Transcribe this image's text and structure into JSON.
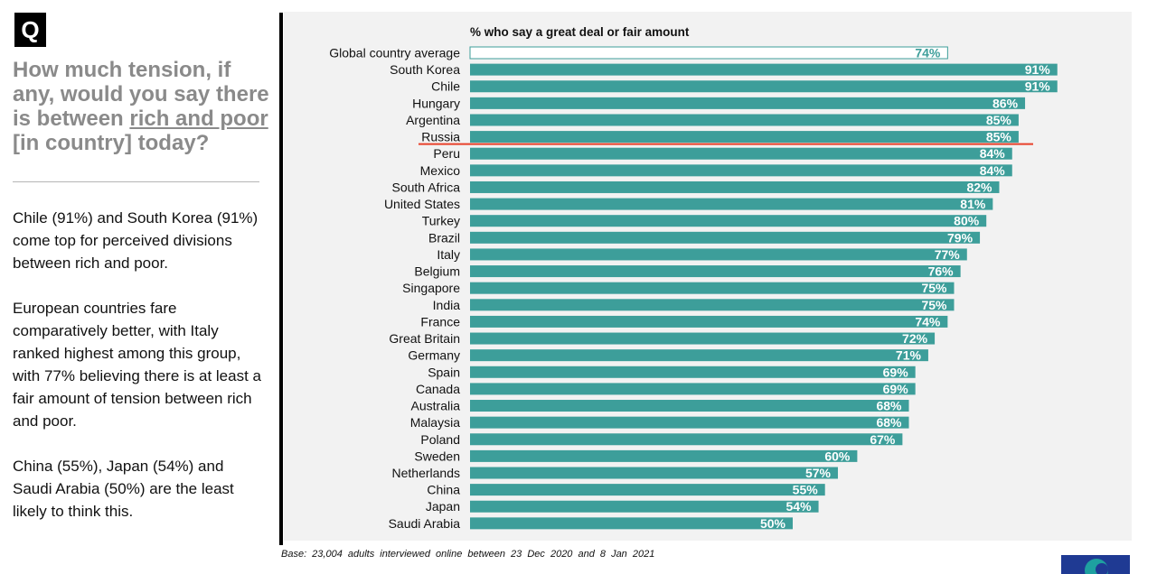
{
  "question": {
    "badge": "Q",
    "line_part1": "How much tension, if any, would you say there is between ",
    "line_underlined": "rich and poor",
    "line_part2": " [in country] today?"
  },
  "commentary": [
    "Chile (91%) and South Korea (91%) come top for perceived divisions between rich and poor.",
    "European countries fare comparatively better, with Italy ranked highest among this group, with 77% believing there is at least a fair amount of tension between rich and poor.",
    "China (55%), Japan (54%) and Saudi Arabia (50%) are the least likely to think this."
  ],
  "base_note": "Base: 23,004 adults interviewed online between 23 Dec 2020 and 8 Jan 2021",
  "colors": {
    "bar": "#3d9e9a",
    "average_bar_fill": "#ffffff",
    "average_bar_border": "#3d9e9a",
    "highlight_line": "#e8402a",
    "chart_background": "#f2f2f2"
  },
  "chart_data": {
    "type": "bar",
    "orientation": "horizontal",
    "title": "% who say a great deal or fair amount",
    "unit": "%",
    "xlim": [
      0,
      100
    ],
    "grid": false,
    "highlighted_category": "Russia",
    "average_category": "Global country average",
    "categories": [
      "Global country average",
      "South Korea",
      "Chile",
      "Hungary",
      "Argentina",
      "Russia",
      "Peru",
      "Mexico",
      "South Africa",
      "United States",
      "Turkey",
      "Brazil",
      "Italy",
      "Belgium",
      "Singapore",
      "India",
      "France",
      "Great Britain",
      "Germany",
      "Spain",
      "Canada",
      "Australia",
      "Malaysia",
      "Poland",
      "Sweden",
      "Netherlands",
      "China",
      "Japan",
      "Saudi Arabia"
    ],
    "values": [
      74,
      91,
      91,
      86,
      85,
      85,
      84,
      84,
      82,
      81,
      80,
      79,
      77,
      76,
      75,
      75,
      74,
      72,
      71,
      69,
      69,
      68,
      68,
      67,
      60,
      57,
      55,
      54,
      50
    ]
  }
}
